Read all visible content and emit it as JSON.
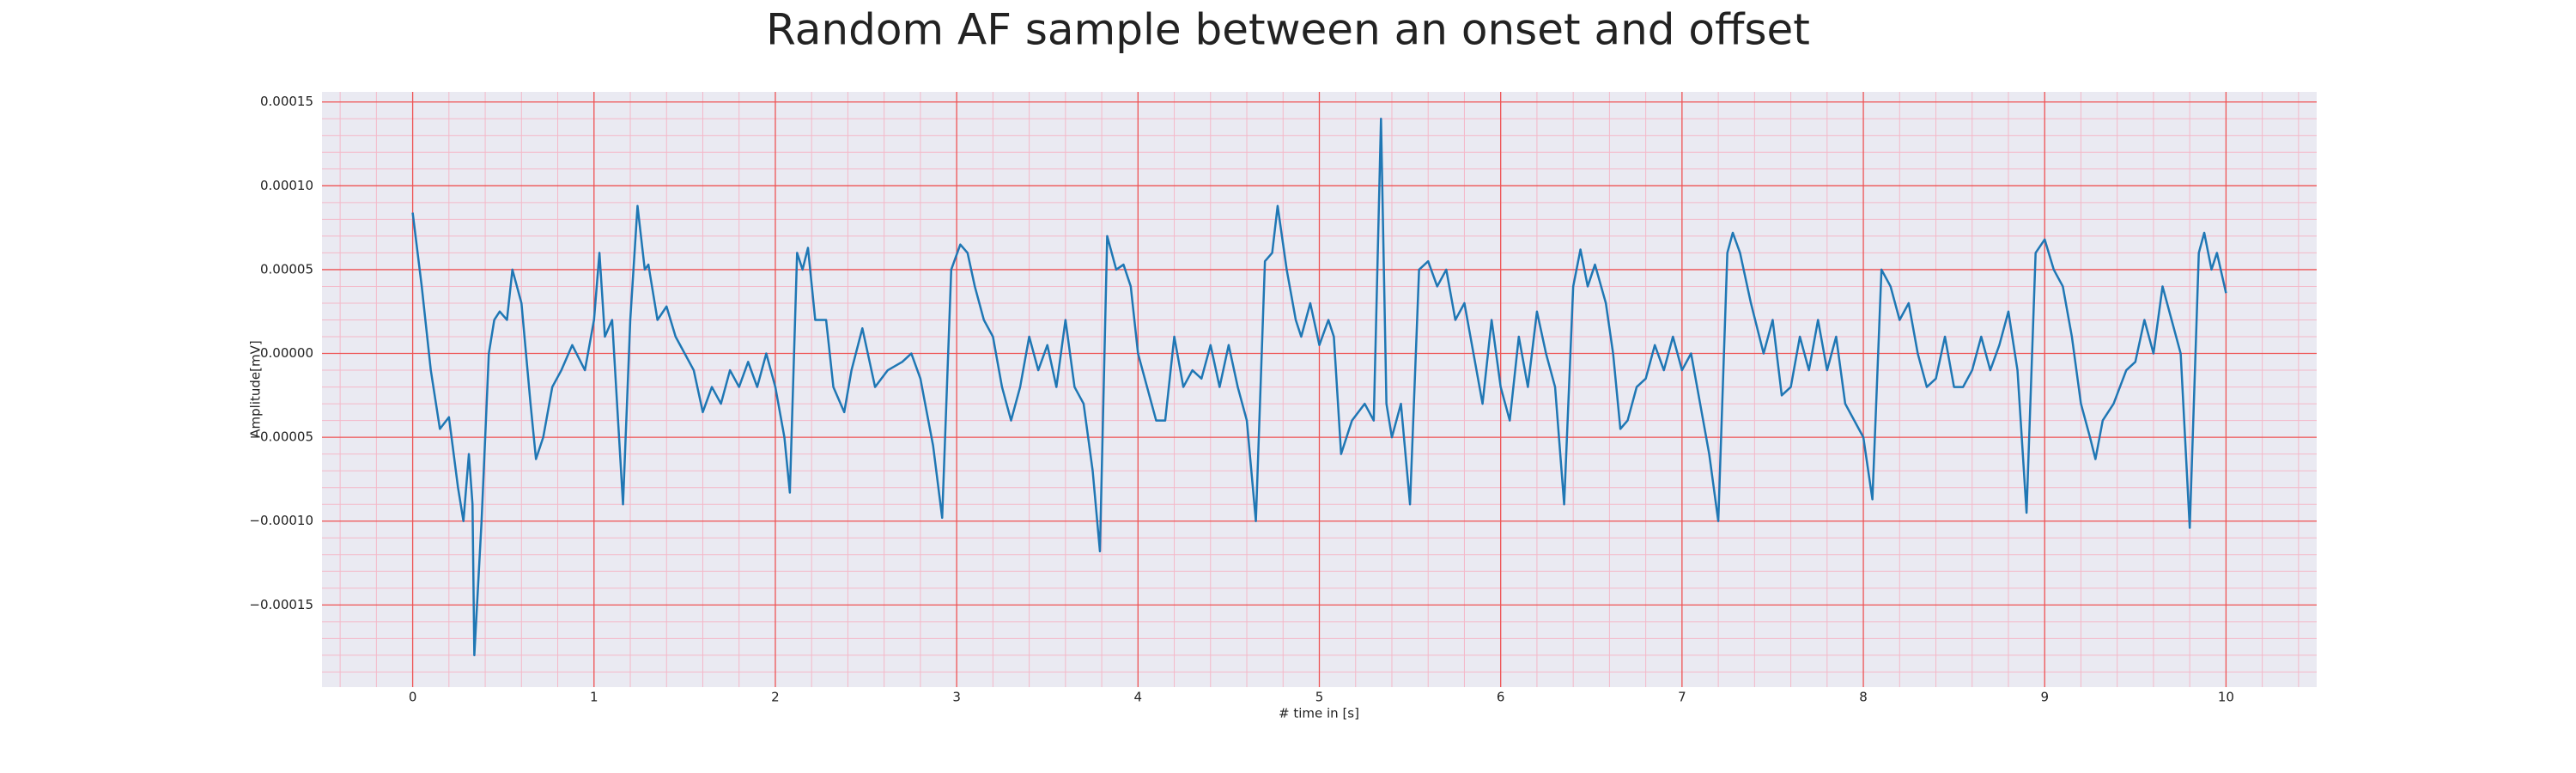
{
  "chart_data": {
    "type": "line",
    "title": "Random AF sample between an onset and offset",
    "xlabel": "# time in [s]",
    "ylabel": "Amplitude[mV]",
    "color": "#1f77b4",
    "grid": true,
    "minor_grid": true,
    "xlim": [
      -0.5,
      10.5
    ],
    "ylim": [
      -0.000199,
      0.000156
    ],
    "xticks": [
      0,
      1,
      2,
      3,
      4,
      5,
      6,
      7,
      8,
      9,
      10
    ],
    "yticks": [
      {
        "value": -0.00015,
        "label": "−0.00015"
      },
      {
        "value": -0.0001,
        "label": "−0.00010"
      },
      {
        "value": -5e-05,
        "label": "−0.00005"
      },
      {
        "value": 0,
        "label": "0.00000"
      },
      {
        "value": 5e-05,
        "label": "0.00005"
      },
      {
        "value": 0.0001,
        "label": "0.00010"
      },
      {
        "value": 0.00015,
        "label": "0.00015"
      }
    ],
    "x": [
      0,
      0.05,
      0.1,
      0.15,
      0.2,
      0.25,
      0.28,
      0.31,
      0.33,
      0.34,
      0.38,
      0.42,
      0.45,
      0.48,
      0.52,
      0.55,
      0.6,
      0.65,
      0.68,
      0.72,
      0.77,
      0.82,
      0.88,
      0.95,
      1.0,
      1.03,
      1.06,
      1.1,
      1.16,
      1.2,
      1.24,
      1.28,
      1.3,
      1.35,
      1.4,
      1.45,
      1.5,
      1.55,
      1.6,
      1.65,
      1.7,
      1.75,
      1.8,
      1.85,
      1.9,
      1.95,
      2.0,
      2.05,
      2.08,
      2.12,
      2.15,
      2.18,
      2.22,
      2.28,
      2.32,
      2.38,
      2.42,
      2.48,
      2.55,
      2.62,
      2.7,
      2.75,
      2.8,
      2.87,
      2.92,
      2.97,
      3.02,
      3.06,
      3.1,
      3.15,
      3.2,
      3.25,
      3.3,
      3.35,
      3.4,
      3.45,
      3.5,
      3.55,
      3.6,
      3.65,
      3.7,
      3.75,
      3.79,
      3.83,
      3.88,
      3.92,
      3.96,
      4.0,
      4.05,
      4.1,
      4.15,
      4.2,
      4.25,
      4.3,
      4.35,
      4.4,
      4.45,
      4.5,
      4.55,
      4.6,
      4.65,
      4.7,
      4.74,
      4.77,
      4.82,
      4.87,
      4.9,
      4.95,
      5.0,
      5.05,
      5.08,
      5.12,
      5.18,
      5.25,
      5.3,
      5.34,
      5.37,
      5.4,
      5.45,
      5.5,
      5.55,
      5.6,
      5.65,
      5.7,
      5.75,
      5.8,
      5.85,
      5.9,
      5.95,
      6.0,
      6.05,
      6.1,
      6.15,
      6.2,
      6.25,
      6.3,
      6.35,
      6.4,
      6.44,
      6.48,
      6.52,
      6.58,
      6.62,
      6.66,
      6.7,
      6.75,
      6.8,
      6.85,
      6.9,
      6.95,
      7.0,
      7.05,
      7.1,
      7.15,
      7.2,
      7.25,
      7.28,
      7.32,
      7.38,
      7.45,
      7.5,
      7.55,
      7.6,
      7.65,
      7.7,
      7.75,
      7.8,
      7.85,
      7.9,
      7.95,
      8.0,
      8.05,
      8.1,
      8.15,
      8.2,
      8.25,
      8.3,
      8.35,
      8.4,
      8.45,
      8.5,
      8.55,
      8.6,
      8.65,
      8.7,
      8.75,
      8.8,
      8.85,
      8.9,
      8.95,
      9.0,
      9.05,
      9.1,
      9.15,
      9.2,
      9.25,
      9.28,
      9.32,
      9.38,
      9.45,
      9.5,
      9.55,
      9.6,
      9.65,
      9.7,
      9.75,
      9.8,
      9.85,
      9.88,
      9.92,
      9.95,
      10.0
    ],
    "values": [
      8.4e-05,
      4e-05,
      -1e-05,
      -4.5e-05,
      -3.8e-05,
      -8e-05,
      -0.0001,
      -6e-05,
      -9e-05,
      -0.00018,
      -0.0001,
      0.0,
      2e-05,
      2.5e-05,
      2e-05,
      5e-05,
      3e-05,
      -3e-05,
      -6.3e-05,
      -5e-05,
      -2e-05,
      -1e-05,
      5e-06,
      -1e-05,
      2e-05,
      6e-05,
      1e-05,
      2e-05,
      -9e-05,
      2e-05,
      8.8e-05,
      5e-05,
      5.3e-05,
      2e-05,
      2.8e-05,
      1e-05,
      0.0,
      -1e-05,
      -3.5e-05,
      -2e-05,
      -3e-05,
      -1e-05,
      -2e-05,
      -5e-06,
      -2e-05,
      0.0,
      -2e-05,
      -5e-05,
      -8.3e-05,
      6e-05,
      5e-05,
      6.3e-05,
      2e-05,
      2e-05,
      -2e-05,
      -3.5e-05,
      -1e-05,
      1.5e-05,
      -2e-05,
      -1e-05,
      -5e-06,
      0.0,
      -1.5e-05,
      -5.5e-05,
      -9.8e-05,
      5e-05,
      6.5e-05,
      6e-05,
      4e-05,
      2e-05,
      1e-05,
      -2e-05,
      -4e-05,
      -2e-05,
      1e-05,
      -1e-05,
      5e-06,
      -2e-05,
      2e-05,
      -2e-05,
      -3e-05,
      -7e-05,
      -0.000118,
      7e-05,
      5e-05,
      5.3e-05,
      4e-05,
      0.0,
      -2e-05,
      -4e-05,
      -4e-05,
      1e-05,
      -2e-05,
      -1e-05,
      -1.5e-05,
      5e-06,
      -2e-05,
      5e-06,
      -2e-05,
      -4e-05,
      -0.0001,
      5.5e-05,
      6e-05,
      8.8e-05,
      5e-05,
      2e-05,
      1e-05,
      3e-05,
      5e-06,
      2e-05,
      1e-05,
      -6e-05,
      -4e-05,
      -3e-05,
      -4e-05,
      0.00014,
      -3e-05,
      -5e-05,
      -3e-05,
      -9e-05,
      5e-05,
      5.5e-05,
      4e-05,
      5e-05,
      2e-05,
      3e-05,
      0.0,
      -3e-05,
      2e-05,
      -2e-05,
      -4e-05,
      1e-05,
      -2e-05,
      2.5e-05,
      0.0,
      -2e-05,
      -9e-05,
      4e-05,
      6.2e-05,
      4e-05,
      5.3e-05,
      3e-05,
      0.0,
      -4.5e-05,
      -4e-05,
      -2e-05,
      -1.5e-05,
      5e-06,
      -1e-05,
      1e-05,
      -1e-05,
      0.0,
      -3e-05,
      -6e-05,
      -0.0001,
      6e-05,
      7.2e-05,
      6e-05,
      3e-05,
      0.0,
      2e-05,
      -2.5e-05,
      -2e-05,
      1e-05,
      -1e-05,
      2e-05,
      -1e-05,
      1e-05,
      -3e-05,
      -4e-05,
      -5e-05,
      -8.7e-05,
      5e-05,
      4e-05,
      2e-05,
      3e-05,
      0.0,
      -2e-05,
      -1.5e-05,
      1e-05,
      -2e-05,
      -2e-05,
      -1e-05,
      1e-05,
      -1e-05,
      5e-06,
      2.5e-05,
      -1e-05,
      -9.5e-05,
      6e-05,
      6.8e-05,
      5e-05,
      4e-05,
      1e-05,
      -3e-05,
      -5e-05,
      -6.3e-05,
      -4e-05,
      -3e-05,
      -1e-05,
      -5e-06,
      2e-05,
      0.0,
      4e-05,
      2e-05,
      0.0,
      -0.000104,
      6e-05,
      7.2e-05,
      5e-05,
      6e-05,
      3.6e-05
    ]
  }
}
